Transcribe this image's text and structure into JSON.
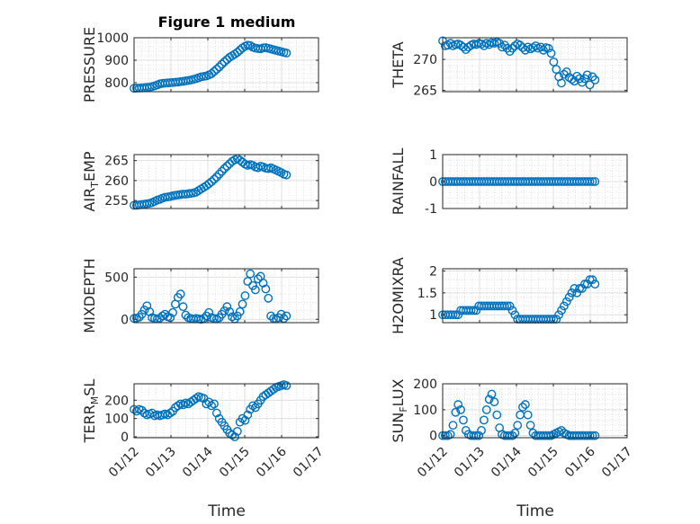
{
  "figure_title": "Figure 1 medium",
  "xlabel": "Time",
  "x_tick_labels": [
    "01/12",
    "01/13",
    "01/14",
    "01/15",
    "01/16",
    "01/17"
  ],
  "marker_color": "#0072BD",
  "chart_data": [
    {
      "type": "scatter",
      "id": "pressure",
      "ylabel": {
        "main": "PRESSURE",
        "sub": "",
        "rest": ""
      },
      "title": "Figure 1 medium",
      "xlim": [
        0,
        5
      ],
      "ylim": [
        760,
        1000
      ],
      "yticks": [
        800,
        900,
        1000
      ],
      "x": [
        0.0,
        0.07,
        0.14,
        0.21,
        0.28,
        0.35,
        0.42,
        0.49,
        0.56,
        0.63,
        0.7,
        0.77,
        0.84,
        0.91,
        0.98,
        1.05,
        1.12,
        1.19,
        1.26,
        1.33,
        1.4,
        1.47,
        1.54,
        1.61,
        1.68,
        1.75,
        1.82,
        1.89,
        1.96,
        2.03,
        2.1,
        2.17,
        2.24,
        2.31,
        2.38,
        2.45,
        2.52,
        2.59,
        2.66,
        2.73,
        2.8,
        2.87,
        2.94,
        3.01,
        3.08,
        3.15,
        3.22,
        3.29,
        3.36,
        3.43,
        3.5,
        3.57,
        3.64,
        3.71,
        3.78,
        3.85,
        3.92,
        3.99,
        4.06,
        4.13
      ],
      "y": [
        775,
        776,
        776,
        777,
        778,
        779,
        780,
        783,
        786,
        790,
        795,
        797,
        798,
        799,
        800,
        801,
        802,
        803,
        805,
        806,
        808,
        810,
        812,
        815,
        818,
        822,
        826,
        828,
        830,
        835,
        840,
        850,
        860,
        870,
        882,
        893,
        903,
        913,
        920,
        927,
        935,
        945,
        955,
        962,
        967,
        965,
        958,
        954,
        952,
        951,
        955,
        956,
        953,
        950,
        947,
        944,
        941,
        938,
        935,
        932
      ]
    },
    {
      "type": "scatter",
      "id": "theta",
      "ylabel": {
        "main": "THETA",
        "sub": "",
        "rest": ""
      },
      "xlim": [
        0,
        5
      ],
      "ylim": [
        264.8,
        273.5
      ],
      "yticks": [
        265,
        270
      ],
      "x": [
        0.0,
        0.07,
        0.14,
        0.21,
        0.28,
        0.35,
        0.42,
        0.49,
        0.56,
        0.63,
        0.7,
        0.77,
        0.84,
        0.91,
        0.98,
        1.05,
        1.12,
        1.19,
        1.26,
        1.33,
        1.4,
        1.47,
        1.54,
        1.61,
        1.68,
        1.75,
        1.82,
        1.89,
        1.96,
        2.03,
        2.1,
        2.17,
        2.24,
        2.31,
        2.38,
        2.45,
        2.52,
        2.59,
        2.66,
        2.73,
        2.8,
        2.87,
        2.94,
        3.01,
        3.08,
        3.15,
        3.22,
        3.29,
        3.36,
        3.43,
        3.5,
        3.57,
        3.64,
        3.71,
        3.78,
        3.85,
        3.92,
        3.99,
        4.06,
        4.13
      ],
      "y": [
        273.0,
        272.2,
        272.3,
        272.6,
        272.2,
        272.4,
        272.5,
        272.3,
        272.0,
        271.6,
        272.0,
        272.3,
        272.5,
        272.4,
        272.6,
        272.5,
        272.2,
        272.6,
        272.4,
        272.7,
        272.6,
        272.8,
        272.6,
        272.0,
        272.3,
        271.8,
        271.3,
        271.8,
        272.2,
        272.5,
        272.3,
        271.9,
        271.5,
        272.0,
        271.7,
        271.9,
        272.2,
        271.8,
        272.0,
        271.5,
        271.9,
        271.8,
        271.0,
        269.6,
        268.4,
        267.2,
        266.2,
        267.6,
        268.0,
        267.1,
        266.8,
        266.5,
        267.3,
        266.9,
        266.3,
        266.9,
        267.5,
        265.9,
        267.2,
        266.7
      ]
    },
    {
      "type": "scatter",
      "id": "air_temp",
      "ylabel": {
        "main": "AIR",
        "sub": "T",
        "rest": "EMP"
      },
      "xlim": [
        0,
        5
      ],
      "ylim": [
        253,
        266.5
      ],
      "yticks": [
        255,
        260,
        265
      ],
      "x": [
        0.0,
        0.07,
        0.14,
        0.21,
        0.28,
        0.35,
        0.42,
        0.49,
        0.56,
        0.63,
        0.7,
        0.77,
        0.84,
        0.91,
        0.98,
        1.05,
        1.12,
        1.19,
        1.26,
        1.33,
        1.4,
        1.47,
        1.54,
        1.61,
        1.68,
        1.75,
        1.82,
        1.89,
        1.96,
        2.03,
        2.1,
        2.17,
        2.24,
        2.31,
        2.38,
        2.45,
        2.52,
        2.59,
        2.66,
        2.73,
        2.8,
        2.87,
        2.94,
        3.01,
        3.08,
        3.15,
        3.22,
        3.29,
        3.36,
        3.43,
        3.5,
        3.57,
        3.64,
        3.71,
        3.78,
        3.85,
        3.92,
        3.99,
        4.06,
        4.13
      ],
      "y": [
        253.8,
        253.8,
        253.9,
        254.0,
        254.1,
        254.2,
        254.3,
        254.5,
        254.8,
        255.1,
        255.3,
        255.6,
        255.8,
        255.9,
        256.0,
        256.2,
        256.3,
        256.4,
        256.5,
        256.6,
        256.6,
        256.7,
        256.8,
        256.9,
        257.1,
        257.5,
        257.9,
        258.3,
        258.7,
        259.2,
        259.7,
        260.3,
        260.9,
        261.6,
        262.3,
        263.0,
        263.6,
        264.2,
        264.8,
        265.2,
        265.5,
        265.1,
        264.6,
        264.1,
        263.8,
        264.0,
        263.8,
        263.4,
        263.2,
        263.6,
        263.4,
        263.1,
        263.0,
        263.2,
        262.9,
        262.6,
        262.3,
        262.0,
        261.6,
        261.4
      ]
    },
    {
      "type": "scatter",
      "id": "rainfall",
      "ylabel": {
        "main": "RAINFALL",
        "sub": "",
        "rest": ""
      },
      "xlim": [
        0,
        5
      ],
      "ylim": [
        -1,
        1
      ],
      "yticks": [
        -1,
        0,
        1
      ],
      "x": [
        0.0,
        0.07,
        0.14,
        0.21,
        0.28,
        0.35,
        0.42,
        0.49,
        0.56,
        0.63,
        0.7,
        0.77,
        0.84,
        0.91,
        0.98,
        1.05,
        1.12,
        1.19,
        1.26,
        1.33,
        1.4,
        1.47,
        1.54,
        1.61,
        1.68,
        1.75,
        1.82,
        1.89,
        1.96,
        2.03,
        2.1,
        2.17,
        2.24,
        2.31,
        2.38,
        2.45,
        2.52,
        2.59,
        2.66,
        2.73,
        2.8,
        2.87,
        2.94,
        3.01,
        3.08,
        3.15,
        3.22,
        3.29,
        3.36,
        3.43,
        3.5,
        3.57,
        3.64,
        3.71,
        3.78,
        3.85,
        3.92,
        3.99,
        4.06,
        4.13
      ],
      "y": [
        0,
        0,
        0,
        0,
        0,
        0,
        0,
        0,
        0,
        0,
        0,
        0,
        0,
        0,
        0,
        0,
        0,
        0,
        0,
        0,
        0,
        0,
        0,
        0,
        0,
        0,
        0,
        0,
        0,
        0,
        0,
        0,
        0,
        0,
        0,
        0,
        0,
        0,
        0,
        0,
        0,
        0,
        0,
        0,
        0,
        0,
        0,
        0,
        0,
        0,
        0,
        0,
        0,
        0,
        0,
        0,
        0,
        0,
        0,
        0
      ]
    },
    {
      "type": "scatter",
      "id": "mixdepth",
      "ylabel": {
        "main": "MIXDEPTH",
        "sub": "",
        "rest": ""
      },
      "xlim": [
        0,
        5
      ],
      "ylim": [
        -40,
        600
      ],
      "yticks": [
        0,
        500
      ],
      "x": [
        0.0,
        0.07,
        0.14,
        0.21,
        0.28,
        0.35,
        0.42,
        0.49,
        0.56,
        0.63,
        0.7,
        0.77,
        0.84,
        0.91,
        0.98,
        1.05,
        1.12,
        1.19,
        1.26,
        1.33,
        1.4,
        1.47,
        1.54,
        1.61,
        1.68,
        1.75,
        1.82,
        1.89,
        1.96,
        2.03,
        2.1,
        2.17,
        2.24,
        2.31,
        2.38,
        2.45,
        2.52,
        2.59,
        2.66,
        2.73,
        2.8,
        2.87,
        2.94,
        3.01,
        3.08,
        3.15,
        3.22,
        3.29,
        3.36,
        3.43,
        3.5,
        3.57,
        3.64,
        3.71,
        3.78,
        3.85,
        3.92,
        3.99,
        4.06,
        4.13
      ],
      "y": [
        10,
        15,
        25,
        60,
        110,
        160,
        90,
        20,
        10,
        5,
        15,
        40,
        60,
        30,
        20,
        80,
        180,
        260,
        300,
        150,
        50,
        20,
        10,
        5,
        10,
        5,
        0,
        10,
        40,
        80,
        20,
        10,
        5,
        20,
        60,
        100,
        150,
        90,
        30,
        5,
        40,
        90,
        180,
        280,
        450,
        540,
        400,
        350,
        480,
        510,
        430,
        360,
        250,
        40,
        10,
        5,
        20,
        60,
        10,
        40
      ]
    },
    {
      "type": "scatter",
      "id": "h2omixra",
      "ylabel": {
        "main": "H2OMIXRA",
        "sub": "",
        "rest": ""
      },
      "xlim": [
        0,
        5
      ],
      "ylim": [
        0.82,
        2.05
      ],
      "yticks": [
        1,
        1.5,
        2
      ],
      "x": [
        0.0,
        0.07,
        0.14,
        0.21,
        0.28,
        0.35,
        0.42,
        0.49,
        0.56,
        0.63,
        0.7,
        0.77,
        0.84,
        0.91,
        0.98,
        1.05,
        1.12,
        1.19,
        1.26,
        1.33,
        1.4,
        1.47,
        1.54,
        1.61,
        1.68,
        1.75,
        1.82,
        1.89,
        1.96,
        2.03,
        2.1,
        2.17,
        2.24,
        2.31,
        2.38,
        2.45,
        2.52,
        2.59,
        2.66,
        2.73,
        2.8,
        2.87,
        2.94,
        3.01,
        3.08,
        3.15,
        3.22,
        3.29,
        3.36,
        3.43,
        3.5,
        3.57,
        3.64,
        3.71,
        3.78,
        3.85,
        3.92,
        3.99,
        4.06,
        4.13
      ],
      "y": [
        1.0,
        1.0,
        1.0,
        1.0,
        1.0,
        1.0,
        1.0,
        1.1,
        1.1,
        1.1,
        1.1,
        1.1,
        1.1,
        1.1,
        1.2,
        1.2,
        1.2,
        1.2,
        1.2,
        1.2,
        1.2,
        1.2,
        1.2,
        1.2,
        1.2,
        1.2,
        1.2,
        1.1,
        1.0,
        0.9,
        0.9,
        0.9,
        0.9,
        0.9,
        0.9,
        0.9,
        0.9,
        0.9,
        0.9,
        0.9,
        0.9,
        0.9,
        0.9,
        0.9,
        0.9,
        1.0,
        1.1,
        1.2,
        1.3,
        1.4,
        1.5,
        1.6,
        1.5,
        1.6,
        1.6,
        1.7,
        1.7,
        1.8,
        1.8,
        1.7
      ]
    },
    {
      "type": "scatter",
      "id": "terr_msl",
      "ylabel": {
        "main": "TERR",
        "sub": "M",
        "rest": "SL"
      },
      "xlim": [
        0,
        5
      ],
      "ylim": [
        -5,
        290
      ],
      "yticks": [
        0,
        100,
        200
      ],
      "x": [
        0.0,
        0.07,
        0.14,
        0.21,
        0.28,
        0.35,
        0.42,
        0.49,
        0.56,
        0.63,
        0.7,
        0.77,
        0.84,
        0.91,
        0.98,
        1.05,
        1.12,
        1.19,
        1.26,
        1.33,
        1.4,
        1.47,
        1.54,
        1.61,
        1.68,
        1.75,
        1.82,
        1.89,
        1.96,
        2.03,
        2.1,
        2.17,
        2.24,
        2.31,
        2.38,
        2.45,
        2.52,
        2.59,
        2.66,
        2.73,
        2.8,
        2.87,
        2.94,
        3.01,
        3.08,
        3.15,
        3.22,
        3.29,
        3.36,
        3.43,
        3.5,
        3.57,
        3.64,
        3.71,
        3.78,
        3.85,
        3.92,
        3.99,
        4.06,
        4.13
      ],
      "y": [
        150,
        140,
        150,
        145,
        130,
        120,
        125,
        130,
        115,
        120,
        115,
        120,
        125,
        120,
        130,
        140,
        160,
        170,
        180,
        175,
        185,
        180,
        190,
        200,
        210,
        220,
        215,
        210,
        180,
        190,
        170,
        180,
        130,
        100,
        80,
        60,
        40,
        20,
        10,
        0,
        30,
        80,
        100,
        90,
        120,
        150,
        170,
        160,
        180,
        200,
        220,
        230,
        240,
        250,
        260,
        270,
        275,
        280,
        285,
        280
      ]
    },
    {
      "type": "scatter",
      "id": "sun_flux",
      "ylabel": {
        "main": "SUN",
        "sub": "F",
        "rest": "LUX"
      },
      "xlim": [
        0,
        5
      ],
      "ylim": [
        -8,
        200
      ],
      "yticks": [
        0,
        100,
        200
      ],
      "x": [
        0.0,
        0.07,
        0.14,
        0.21,
        0.28,
        0.35,
        0.42,
        0.49,
        0.56,
        0.63,
        0.7,
        0.77,
        0.84,
        0.91,
        0.98,
        1.05,
        1.12,
        1.19,
        1.26,
        1.33,
        1.4,
        1.47,
        1.54,
        1.61,
        1.68,
        1.75,
        1.82,
        1.89,
        1.96,
        2.03,
        2.1,
        2.17,
        2.24,
        2.31,
        2.38,
        2.45,
        2.52,
        2.59,
        2.66,
        2.73,
        2.8,
        2.87,
        2.94,
        3.01,
        3.08,
        3.15,
        3.22,
        3.29,
        3.36,
        3.43,
        3.5,
        3.57,
        3.64,
        3.71,
        3.78,
        3.85,
        3.92,
        3.99,
        4.06,
        4.13
      ],
      "y": [
        0,
        0,
        0,
        5,
        40,
        90,
        120,
        100,
        60,
        20,
        5,
        0,
        0,
        0,
        0,
        20,
        60,
        100,
        140,
        160,
        130,
        80,
        30,
        5,
        0,
        0,
        0,
        0,
        10,
        40,
        80,
        110,
        120,
        80,
        40,
        10,
        0,
        0,
        0,
        0,
        0,
        0,
        0,
        5,
        10,
        15,
        20,
        10,
        5,
        0,
        0,
        0,
        0,
        0,
        0,
        0,
        0,
        0,
        0,
        0
      ]
    }
  ]
}
